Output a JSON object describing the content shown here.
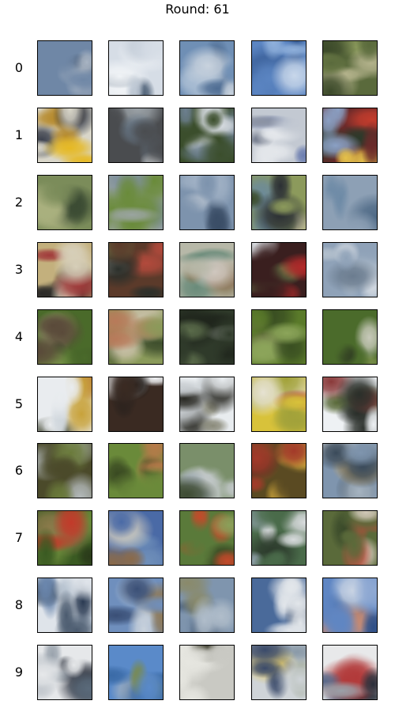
{
  "title": "Round: 61",
  "rows": [
    {
      "label": "0",
      "tiles": [
        {
          "name": "tile-0-0",
          "palette": [
            "#6f87a6",
            "#3b4c6b",
            "#a8b4c3",
            "#2d3a4e",
            "#8a9bb2"
          ]
        },
        {
          "name": "tile-0-1",
          "palette": [
            "#d6dde6",
            "#f0f3f6",
            "#7d8ea3",
            "#4a5d73",
            "#bfc9d5"
          ]
        },
        {
          "name": "tile-0-2",
          "palette": [
            "#6f8fb5",
            "#a9bdd3",
            "#2e4565",
            "#c9d3de",
            "#4f6d93"
          ]
        },
        {
          "name": "tile-0-3",
          "palette": [
            "#5b85c2",
            "#8fb0db",
            "#3a5f98",
            "#c8d7ea",
            "#2f4d7d"
          ]
        },
        {
          "name": "tile-0-4",
          "palette": [
            "#5a6a3c",
            "#8b9a5c",
            "#3c4a2a",
            "#b3b28b",
            "#6f7f95"
          ]
        }
      ]
    },
    {
      "label": "1",
      "tiles": [
        {
          "name": "tile-1-0",
          "palette": [
            "#d9d6c9",
            "#e6b923",
            "#3a3f4c",
            "#7f8aa0",
            "#b68a2c"
          ]
        },
        {
          "name": "tile-1-1",
          "palette": [
            "#4a4c4f",
            "#9aa1a6",
            "#1f2226",
            "#c9ccce",
            "#6b7c8d"
          ]
        },
        {
          "name": "tile-1-2",
          "palette": [
            "#3b4e2c",
            "#d8dde3",
            "#1f2a1a",
            "#c7a03b",
            "#6c7f8f"
          ]
        },
        {
          "name": "tile-1-3",
          "palette": [
            "#c3c9d2",
            "#2c3650",
            "#e4e7eb",
            "#6b7db0",
            "#8c93a3"
          ]
        },
        {
          "name": "tile-1-4",
          "palette": [
            "#6a2a2a",
            "#c23c2c",
            "#e5c14a",
            "#2b3a2a",
            "#8aa0c4"
          ]
        }
      ]
    },
    {
      "label": "2",
      "tiles": [
        {
          "name": "tile-2-0",
          "palette": [
            "#7b8c5a",
            "#5a6d3a",
            "#a9b07e",
            "#3b4b33",
            "#8fa0b5"
          ]
        },
        {
          "name": "tile-2-1",
          "palette": [
            "#9aa4a0",
            "#6a8b3a",
            "#c3c9c7",
            "#3e5326",
            "#7e8f9c"
          ]
        },
        {
          "name": "tile-2-2",
          "palette": [
            "#7d93ad",
            "#9fb0c4",
            "#3a4d66",
            "#5f7fa6",
            "#c6ced8"
          ]
        },
        {
          "name": "tile-2-3",
          "palette": [
            "#8c9a5c",
            "#3b4b2b",
            "#c8c3a0",
            "#6c8a9b",
            "#2b2f34"
          ]
        },
        {
          "name": "tile-2-4",
          "palette": [
            "#8da0b5",
            "#6d8aa6",
            "#b9c4d0",
            "#4f6a86",
            "#a7a98d"
          ]
        }
      ]
    },
    {
      "label": "3",
      "tiles": [
        {
          "name": "tile-3-0",
          "palette": [
            "#c3b07d",
            "#6c7a3c",
            "#2b2a28",
            "#d7cfb9",
            "#a13b3b"
          ]
        },
        {
          "name": "tile-3-1",
          "palette": [
            "#5b3a2a",
            "#d7d4cf",
            "#2b2f2a",
            "#b24a3c",
            "#6a7b4a"
          ]
        },
        {
          "name": "tile-3-2",
          "palette": [
            "#b7b8a8",
            "#d1c8c0",
            "#8a7a5a",
            "#c07d8a",
            "#6a8b7a"
          ]
        },
        {
          "name": "tile-3-3",
          "palette": [
            "#3a1f1f",
            "#b32a2a",
            "#d9dde1",
            "#6a7f4a",
            "#1c1a1a"
          ]
        },
        {
          "name": "tile-3-4",
          "palette": [
            "#8fa2b8",
            "#b2bfcc",
            "#4e5d70",
            "#d2d9e1",
            "#6b7c8f"
          ]
        }
      ]
    },
    {
      "label": "4",
      "tiles": [
        {
          "name": "tile-4-0",
          "palette": [
            "#4a6a2a",
            "#7c9a4a",
            "#2b3a1f",
            "#a9b07b",
            "#5a4a3a"
          ]
        },
        {
          "name": "tile-4-1",
          "palette": [
            "#8a9a5a",
            "#c9c0a8",
            "#5a6a3a",
            "#b87a5a",
            "#3a4a2a"
          ]
        },
        {
          "name": "tile-4-2",
          "palette": [
            "#2f3a2a",
            "#d4d7d2",
            "#5a6b4a",
            "#1f251c",
            "#8c9a7a"
          ]
        },
        {
          "name": "tile-4-3",
          "palette": [
            "#5a7a2a",
            "#8ca55a",
            "#3a4f22",
            "#b3c08a",
            "#6b6a4a"
          ]
        },
        {
          "name": "tile-4-4",
          "palette": [
            "#4b6b2b",
            "#c7c9b9",
            "#2f3b22",
            "#7a8f4a",
            "#9a7a6a"
          ]
        }
      ]
    },
    {
      "label": "5",
      "tiles": [
        {
          "name": "tile-5-0",
          "palette": [
            "#e9ecef",
            "#c8a23a",
            "#3a3f2a",
            "#cfd6dc",
            "#a33a3a"
          ]
        },
        {
          "name": "tile-5-1",
          "palette": [
            "#3a2a22",
            "#eef0f2",
            "#5a3a2a",
            "#b22a2a",
            "#1f1c1a"
          ]
        },
        {
          "name": "tile-5-2",
          "palette": [
            "#e8ecef",
            "#4a4a3a",
            "#c9ced2",
            "#2a2a24",
            "#8a8a7a"
          ]
        },
        {
          "name": "tile-5-3",
          "palette": [
            "#d8c23a",
            "#3a3a2a",
            "#e6e2d2",
            "#a2a23a",
            "#b23a3a"
          ]
        },
        {
          "name": "tile-5-4",
          "palette": [
            "#eef1f4",
            "#2a2f2a",
            "#c2c8ce",
            "#8a3a3a",
            "#5a6a3a"
          ]
        }
      ]
    },
    {
      "label": "6",
      "tiles": [
        {
          "name": "tile-6-0",
          "palette": [
            "#4b4a2a",
            "#b2b8b9",
            "#6a7a3a",
            "#2a2a1f",
            "#d3d6d2"
          ]
        },
        {
          "name": "tile-6-1",
          "palette": [
            "#6a8a3a",
            "#b87a4a",
            "#3a4a22",
            "#c9b99a",
            "#8a3a2a"
          ]
        },
        {
          "name": "tile-6-2",
          "palette": [
            "#7a8f6a",
            "#a3aeb5",
            "#5a6a3a",
            "#c2c8c9",
            "#3e4b34"
          ]
        },
        {
          "name": "tile-6-3",
          "palette": [
            "#5a4a22",
            "#c9a23a",
            "#2a2a1c",
            "#8ca04a",
            "#a33a2a"
          ]
        },
        {
          "name": "tile-6-4",
          "palette": [
            "#7f95ae",
            "#a6b4c1",
            "#d4a34a",
            "#3a4a5a",
            "#c9cfd4"
          ]
        }
      ]
    },
    {
      "label": "7",
      "tiles": [
        {
          "name": "tile-7-0",
          "palette": [
            "#3a5a22",
            "#6a8a3a",
            "#c23a2a",
            "#2a3a1a",
            "#8a7a4a"
          ]
        },
        {
          "name": "tile-7-1",
          "palette": [
            "#4a6aa6",
            "#c9c6bd",
            "#8a6a4a",
            "#3a4a3a",
            "#6f8fb9"
          ]
        },
        {
          "name": "tile-7-2",
          "palette": [
            "#5a7a3a",
            "#c34a2a",
            "#d6d2c4",
            "#3a4a24",
            "#8aa05a"
          ]
        },
        {
          "name": "tile-7-3",
          "palette": [
            "#4a6b4a",
            "#d8dbdd",
            "#2c3a2c",
            "#8fa0a8",
            "#6a7a5a"
          ]
        },
        {
          "name": "tile-7-4",
          "palette": [
            "#5a6a3a",
            "#c2a27a",
            "#b84a3a",
            "#3a4a2a",
            "#d1c8b8"
          ]
        }
      ]
    },
    {
      "label": "8",
      "tiles": [
        {
          "name": "tile-8-0",
          "palette": [
            "#dfe4ea",
            "#6a86ad",
            "#2a3a52",
            "#b8c4d1",
            "#4a5a6e"
          ]
        },
        {
          "name": "tile-8-1",
          "palette": [
            "#6f8fbd",
            "#3a4f76",
            "#c9d2dc",
            "#8e7a5a",
            "#a9b9cc"
          ]
        },
        {
          "name": "tile-8-2",
          "palette": [
            "#7f95ae",
            "#4b617d",
            "#b0bdca",
            "#8a8a6a",
            "#5f7590"
          ]
        },
        {
          "name": "tile-8-3",
          "palette": [
            "#4a6a9a",
            "#e2e6ea",
            "#2b3b58",
            "#a9b7c8",
            "#5a7ab0"
          ]
        },
        {
          "name": "tile-8-4",
          "palette": [
            "#5f86c3",
            "#8fa9d3",
            "#2f4f86",
            "#c8d3e3",
            "#d08a6a"
          ]
        }
      ]
    },
    {
      "label": "9",
      "tiles": [
        {
          "name": "tile-9-0",
          "palette": [
            "#e6e8ea",
            "#3a3f4a",
            "#9aa3ad",
            "#c23a2a",
            "#5a6a7a"
          ]
        },
        {
          "name": "tile-9-1",
          "palette": [
            "#5a8ac9",
            "#2a3a5a",
            "#c9c6bd",
            "#3a6aa6",
            "#7a8a4a"
          ]
        },
        {
          "name": "tile-9-2",
          "palette": [
            "#c9c9c3",
            "#2a3a4a",
            "#6a7a9a",
            "#e6e6e0",
            "#4a4a3a"
          ]
        },
        {
          "name": "tile-9-3",
          "palette": [
            "#cfd4d8",
            "#5a6a3a",
            "#3a4a6a",
            "#e0c86a",
            "#8a9aa8"
          ]
        },
        {
          "name": "tile-9-4",
          "palette": [
            "#e8e9ea",
            "#2a2f3a",
            "#9aa0a8",
            "#b23a3a",
            "#5a6a8a"
          ]
        }
      ]
    }
  ]
}
